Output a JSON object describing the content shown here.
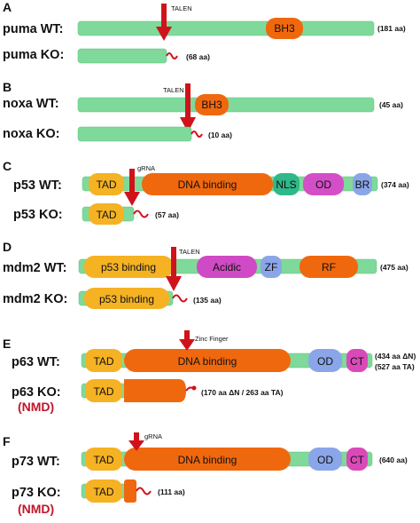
{
  "colors": {
    "protein_bar": "#7fd99a",
    "arrow": "#d0121b",
    "tad": "#f5b223",
    "dna_binding": "#f0680e",
    "nls": "#2fb88a",
    "od": "#d44fc7",
    "br": "#8aa6e8",
    "acidic": "#cf4ac4",
    "zf": "#8aa6e8",
    "rf": "#f0680e",
    "ct": "#d94ab8",
    "nmd_text": "#c0152a"
  },
  "panels": [
    {
      "letter": "A",
      "wt": {
        "label": "puma WT:",
        "size": "(181 aa)",
        "domains": [
          "BH3"
        ]
      },
      "ko": {
        "label": "puma KO:",
        "size": "(68 aa)"
      },
      "tool": "TALEN"
    },
    {
      "letter": "B",
      "wt": {
        "label": "noxa WT:",
        "size": "(45 aa)",
        "domains": [
          "BH3"
        ]
      },
      "ko": {
        "label": "noxa KO:",
        "size": "(10 aa)"
      },
      "tool": "TALEN"
    },
    {
      "letter": "C",
      "wt": {
        "label": "p53 WT:",
        "size": "(374 aa)",
        "domains": [
          "TAD",
          "DNA binding",
          "NLS",
          "OD",
          "BR"
        ]
      },
      "ko": {
        "label": "p53 KO:",
        "size": "(57 aa)",
        "domains": [
          "TAD"
        ]
      },
      "tool": "gRNA"
    },
    {
      "letter": "D",
      "wt": {
        "label": "mdm2 WT:",
        "size": "(475 aa)",
        "domains": [
          "p53 binding",
          "Acidic",
          "ZF",
          "RF"
        ]
      },
      "ko": {
        "label": "mdm2 KO:",
        "size": "(135 aa)",
        "domains": [
          "p53 binding"
        ]
      },
      "tool": "TALEN"
    },
    {
      "letter": "E",
      "wt": {
        "label": "p63 WT:",
        "size_line1": "(434 aa ΔN)",
        "size_line2": "(527 aa TA)",
        "domains": [
          "TAD",
          "DNA binding",
          "OD",
          "CT"
        ]
      },
      "ko": {
        "label": "p63 KO:",
        "size": "(170 aa ΔN / 263 aa TA)",
        "domains": [
          "TAD"
        ],
        "note": "(NMD)"
      },
      "tool": "Zinc Finger"
    },
    {
      "letter": "F",
      "wt": {
        "label": "p73 WT:",
        "size": "(640 aa)",
        "domains": [
          "TAD",
          "DNA binding",
          "OD",
          "CT"
        ]
      },
      "ko": {
        "label": "p73 KO:",
        "size": "(111 aa)",
        "domains": [
          "TAD"
        ],
        "note": "(NMD)"
      },
      "tool": "gRNA"
    }
  ]
}
